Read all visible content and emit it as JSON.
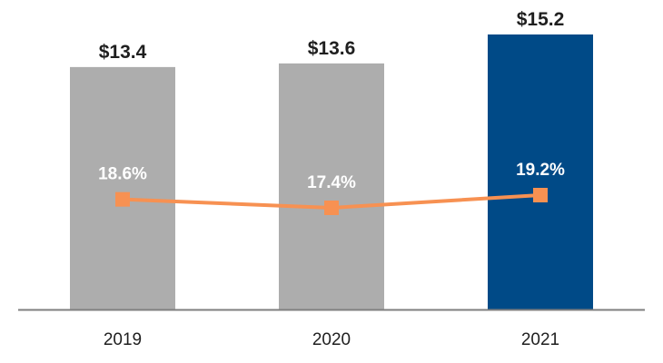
{
  "chart_data": {
    "type": "bar",
    "categories": [
      "2019",
      "2020",
      "2021"
    ],
    "series": [
      {
        "values": [
          13.4,
          13.6,
          15.2
        ],
        "kind": "bar"
      },
      {
        "values": [
          18.6,
          17.4,
          19.2
        ],
        "kind": "line"
      }
    ],
    "bar_labels": [
      "$13.4",
      "$13.6",
      "$15.2"
    ],
    "line_labels": [
      "18.6%",
      "17.4%",
      "19.2%"
    ],
    "bar_colors": [
      "#adadad",
      "#adadad",
      "#004a87"
    ],
    "line_color": "#f79152",
    "axis_color": "#7f7f7f",
    "grid": false,
    "legend": "none"
  }
}
